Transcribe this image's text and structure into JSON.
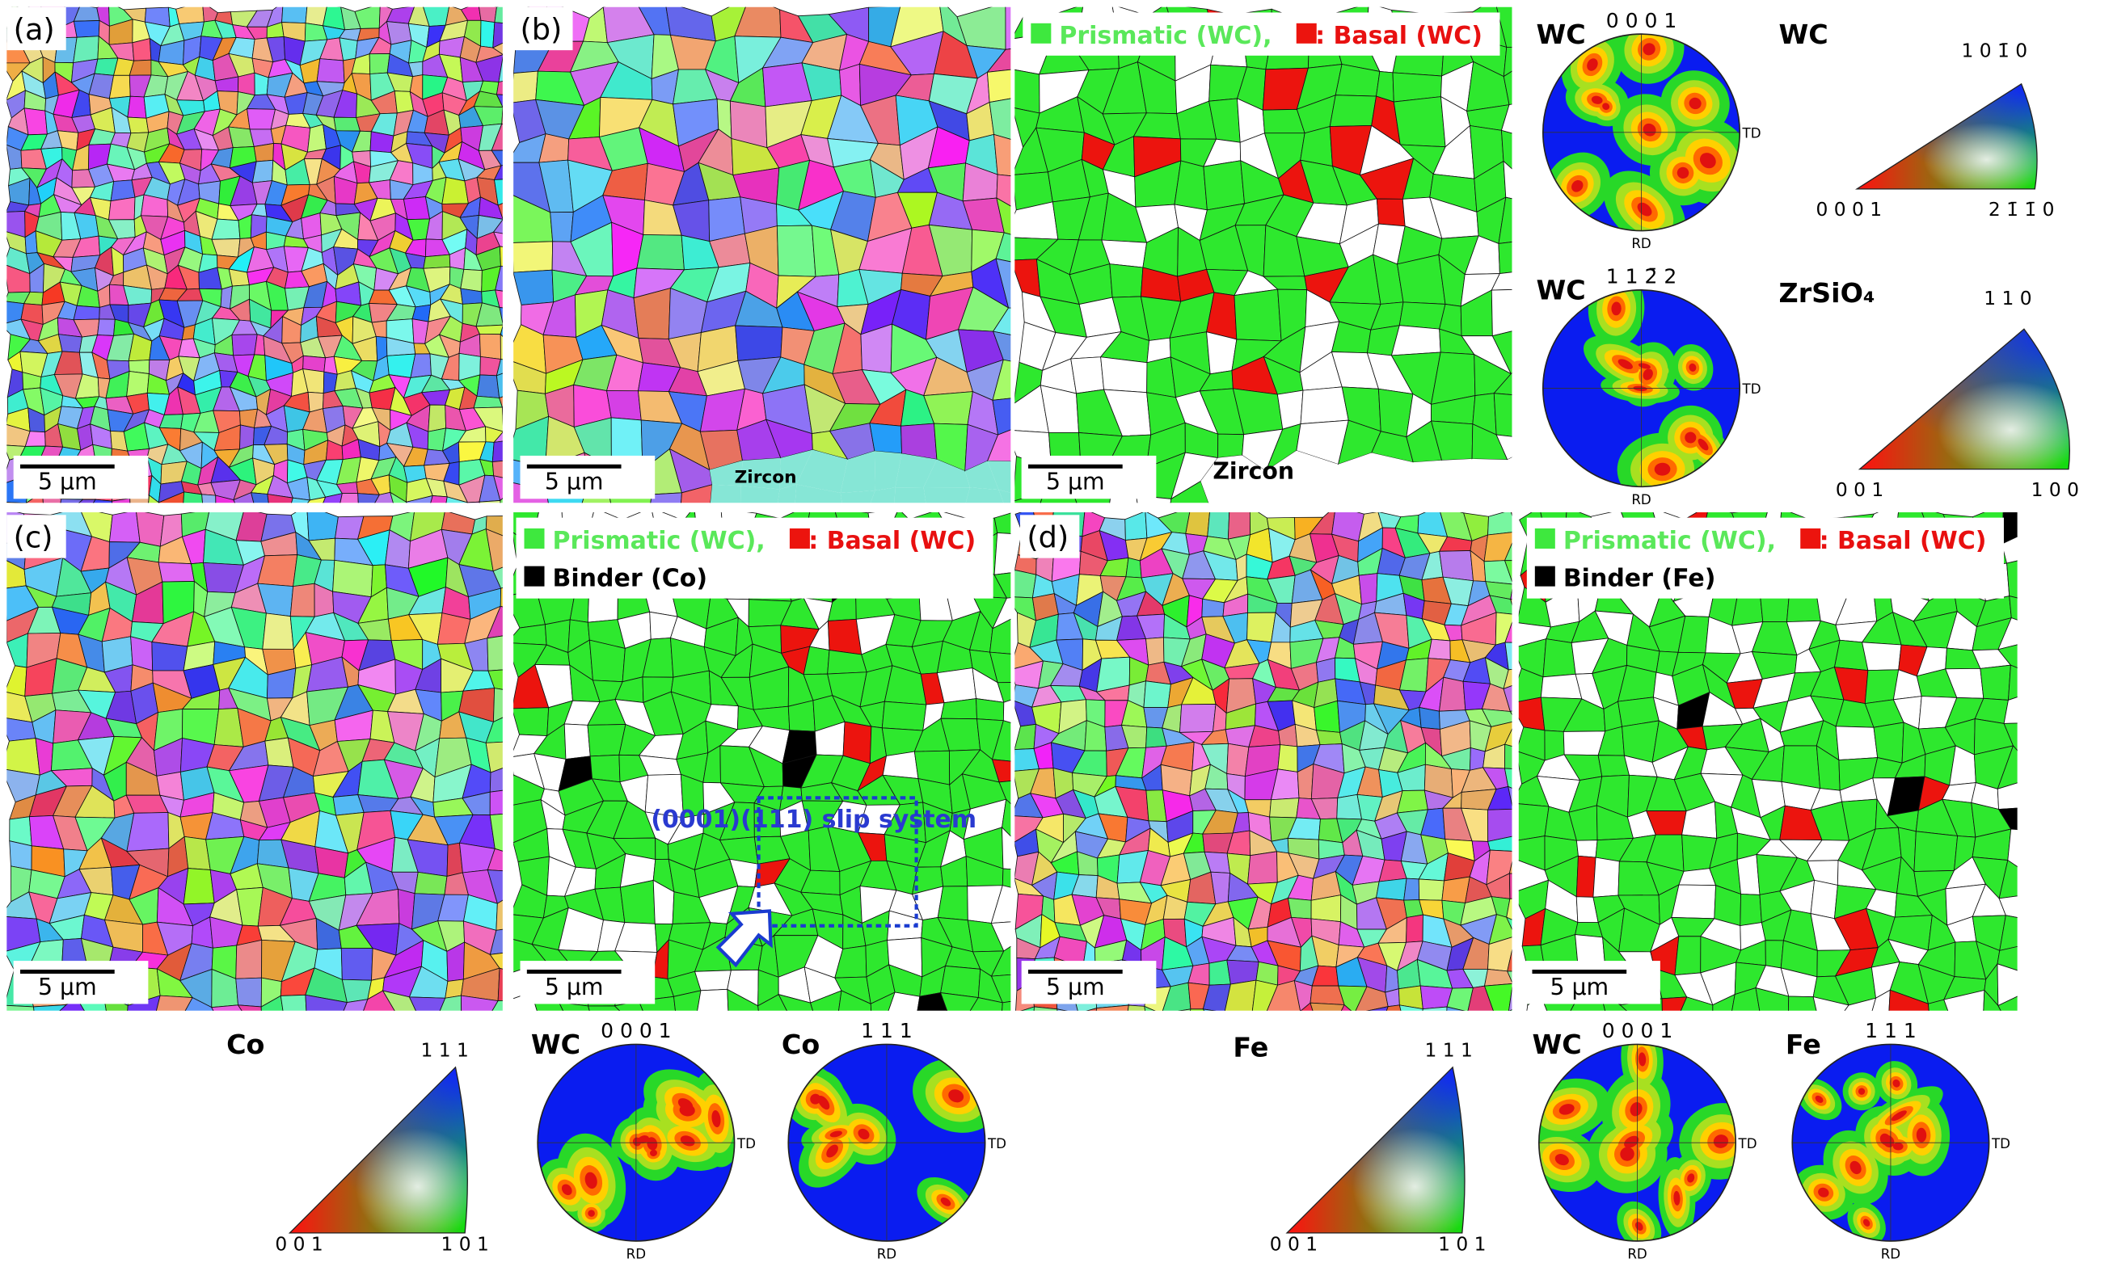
{
  "panels": {
    "a": {
      "label": "(a)",
      "scale_bar": "5 μm"
    },
    "b": {
      "label": "(b)",
      "scale_bar": "5 μm",
      "phase": "Zircon"
    },
    "b_phase": {
      "legend_prismatic": "Prismatic (WC),",
      "legend_basal": ": Basal (WC)",
      "scale_bar": "5 μm",
      "phase": "Zircon"
    },
    "c": {
      "label": "(c)",
      "scale_bar": "5 μm"
    },
    "c_phase": {
      "legend_prismatic": "Prismatic (WC),",
      "legend_basal": ": Basal (WC)",
      "legend_binder": "Binder (Co)",
      "scale_bar": "5 μm",
      "annotation": "(0001)(111) slip system"
    },
    "d": {
      "label": "(d)",
      "scale_bar": "5 μm"
    },
    "d_phase": {
      "legend_prismatic": "Prismatic (WC),",
      "legend_basal": ": Basal (WC)",
      "legend_binder": "Binder (Fe)",
      "scale_bar": "5 μm"
    }
  },
  "pole_figures": [
    {
      "phase": "WC",
      "direction": "0 0 0 1",
      "td": "TD",
      "rd": "RD"
    },
    {
      "phase": "WC",
      "direction": "1 1 2̄ 2",
      "td": "TD",
      "rd": "RD"
    },
    {
      "phase": "WC",
      "direction": "0 0 0 1",
      "td": "TD",
      "rd": "RD"
    },
    {
      "phase": "Co",
      "direction": "1 1 1",
      "td": "TD",
      "rd": "RD"
    },
    {
      "phase": "WC",
      "direction": "0 0 0 1",
      "td": "TD",
      "rd": "RD"
    },
    {
      "phase": "Fe",
      "direction": "1 1 1",
      "td": "TD",
      "rd": "RD"
    }
  ],
  "ipf_keys": [
    {
      "phase": "WC",
      "top": "1 0 1̄ 0",
      "left": "0 0 0 1",
      "right": "2 1̄ 1̄ 0"
    },
    {
      "phase": "ZrSiO₄",
      "top": "1 1 0",
      "left": "0 0 1",
      "right": "1 0 0"
    },
    {
      "phase": "Co",
      "top": "1 1 1",
      "left": "0 0 1",
      "right": "1 0 1"
    },
    {
      "phase": "Fe",
      "top": "1 1 1",
      "left": "0 0 1",
      "right": "1 0 1"
    }
  ]
}
